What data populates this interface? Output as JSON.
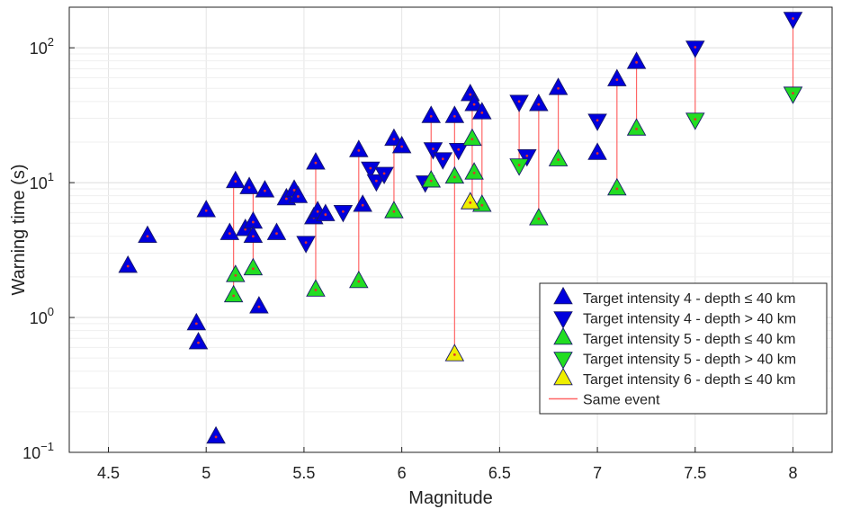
{
  "chart_data": {
    "type": "scatter",
    "title": "",
    "xlabel": "Magnitude",
    "ylabel": "Warning time (s)",
    "xlim": [
      4.3,
      8.2
    ],
    "ylim": [
      0.1,
      200
    ],
    "yscale": "log",
    "grid": true,
    "x_ticks": [
      {
        "value": 4.5,
        "label": "4.5"
      },
      {
        "value": 5,
        "label": "5"
      },
      {
        "value": 5.5,
        "label": "5.5"
      },
      {
        "value": 6,
        "label": "6"
      },
      {
        "value": 6.5,
        "label": "6.5"
      },
      {
        "value": 7,
        "label": "7"
      },
      {
        "value": 7.5,
        "label": "7.5"
      },
      {
        "value": 8,
        "label": "8"
      }
    ],
    "y_ticks": [
      {
        "value": 0.1,
        "base": "10",
        "exp": "−1"
      },
      {
        "value": 1,
        "base": "10",
        "exp": "0"
      },
      {
        "value": 10,
        "base": "10",
        "exp": "1"
      },
      {
        "value": 100,
        "base": "10",
        "exp": "2"
      }
    ],
    "legend_position": "bottom-right",
    "series": [
      {
        "name": "Target intensity 4 - depth ≤ 40 km",
        "marker": "triangle-up",
        "color": "#0000dd",
        "points": [
          [
            4.6,
            2.4
          ],
          [
            4.7,
            4.0
          ],
          [
            4.95,
            0.9
          ],
          [
            4.96,
            0.65
          ],
          [
            5.0,
            6.2
          ],
          [
            5.05,
            0.13
          ],
          [
            5.12,
            4.2
          ],
          [
            5.15,
            10.2
          ],
          [
            5.2,
            4.5
          ],
          [
            5.22,
            9.2
          ],
          [
            5.24,
            5.1
          ],
          [
            5.24,
            4.0
          ],
          [
            5.27,
            1.2
          ],
          [
            5.3,
            8.7
          ],
          [
            5.36,
            4.2
          ],
          [
            5.41,
            7.6
          ],
          [
            5.45,
            8.8
          ],
          [
            5.47,
            7.9
          ],
          [
            5.55,
            5.5
          ],
          [
            5.56,
            14.0
          ],
          [
            5.57,
            6.1
          ],
          [
            5.61,
            5.8
          ],
          [
            5.78,
            17.3
          ],
          [
            5.8,
            6.8
          ],
          [
            5.96,
            21.0
          ],
          [
            6.0,
            18.5
          ],
          [
            6.15,
            31.0
          ],
          [
            6.27,
            31.0
          ],
          [
            6.35,
            45.0
          ],
          [
            6.37,
            38.0
          ],
          [
            6.41,
            33.0
          ],
          [
            6.7,
            38.0
          ],
          [
            6.8,
            50.0
          ],
          [
            7.0,
            16.5
          ],
          [
            7.1,
            58.0
          ],
          [
            7.2,
            78.0
          ]
        ]
      },
      {
        "name": "Target intensity 4 - depth > 40 km",
        "marker": "triangle-down",
        "color": "#0000dd",
        "points": [
          [
            5.51,
            3.6
          ],
          [
            5.7,
            6.1
          ],
          [
            5.84,
            12.8
          ],
          [
            5.87,
            10.3
          ],
          [
            5.91,
            11.7
          ],
          [
            6.12,
            10.1
          ],
          [
            6.16,
            17.8
          ],
          [
            6.21,
            15.0
          ],
          [
            6.29,
            17.6
          ],
          [
            6.6,
            40.0
          ],
          [
            6.64,
            15.8
          ],
          [
            7.0,
            29.0
          ],
          [
            7.5,
            101.0
          ],
          [
            8.0,
            165.0
          ]
        ]
      },
      {
        "name": "Target intensity 5 - depth ≤ 40 km",
        "marker": "triangle-up",
        "color": "#22dd22",
        "points": [
          [
            5.14,
            1.45
          ],
          [
            5.15,
            2.05
          ],
          [
            5.24,
            2.3
          ],
          [
            5.56,
            1.6
          ],
          [
            5.78,
            1.85
          ],
          [
            5.96,
            6.1
          ],
          [
            6.15,
            10.3
          ],
          [
            6.27,
            11.0
          ],
          [
            6.36,
            21.0
          ],
          [
            6.37,
            11.8
          ],
          [
            6.41,
            6.8
          ],
          [
            6.7,
            5.4
          ],
          [
            6.8,
            14.8
          ],
          [
            7.1,
            9.0
          ],
          [
            7.2,
            25.0
          ]
        ]
      },
      {
        "name": "Target intensity 5 - depth > 40 km",
        "marker": "triangle-down",
        "color": "#22dd22",
        "points": [
          [
            6.6,
            13.5
          ],
          [
            7.5,
            29.5
          ],
          [
            8.0,
            46.0
          ]
        ]
      },
      {
        "name": "Target intensity 6 - depth ≤ 40 km",
        "marker": "triangle-up",
        "color": "#eeee00",
        "points": [
          [
            6.27,
            0.53
          ],
          [
            6.35,
            7.1
          ]
        ]
      },
      {
        "name": "Same event",
        "marker": "line",
        "color": "#ff6666",
        "segments": [
          [
            5.14,
            1.45,
            10.2
          ],
          [
            5.24,
            2.3,
            9.2
          ],
          [
            5.56,
            1.6,
            14.0
          ],
          [
            5.78,
            1.85,
            17.3
          ],
          [
            5.96,
            6.1,
            21.0
          ],
          [
            6.15,
            10.3,
            31.0
          ],
          [
            6.27,
            0.53,
            31.0
          ],
          [
            6.36,
            7.1,
            45.0
          ],
          [
            6.41,
            6.8,
            33.0
          ],
          [
            6.6,
            13.5,
            40.0
          ],
          [
            6.7,
            5.4,
            38.0
          ],
          [
            6.8,
            14.8,
            50.0
          ],
          [
            7.1,
            9.0,
            58.0
          ],
          [
            7.2,
            25.0,
            78.0
          ],
          [
            7.5,
            29.5,
            101.0
          ],
          [
            8.0,
            46.0,
            165.0
          ]
        ]
      }
    ]
  }
}
